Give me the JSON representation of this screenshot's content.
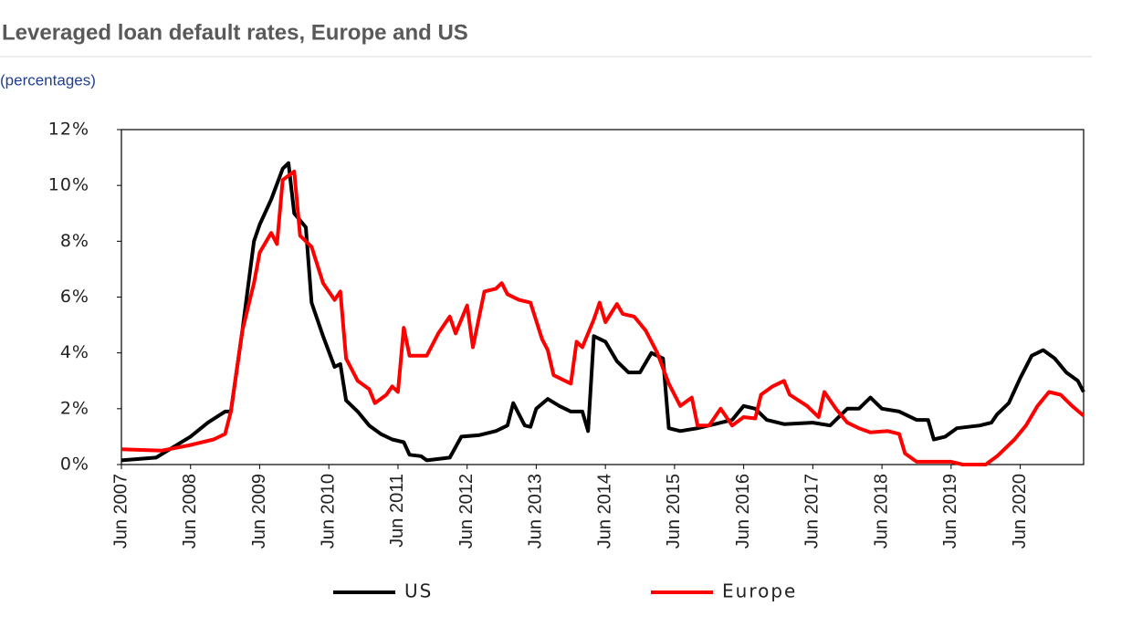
{
  "chart_data": {
    "type": "line",
    "title": "Leveraged loan default rates, Europe and US",
    "subtitle": "(percentages)",
    "xlim": [
      "2007-06",
      "2021-05"
    ],
    "xticks": [
      {
        "value": "2007-06",
        "label": "Jun 2007"
      },
      {
        "value": "2008-06",
        "label": "Jun 2008"
      },
      {
        "value": "2009-06",
        "label": "Jun 2009"
      },
      {
        "value": "2010-06",
        "label": "Jun 2010"
      },
      {
        "value": "2011-06",
        "label": "Jun 2011"
      },
      {
        "value": "2012-06",
        "label": "Jun 2012"
      },
      {
        "value": "2013-06",
        "label": "Jun 2013"
      },
      {
        "value": "2014-06",
        "label": "Jun 2014"
      },
      {
        "value": "2015-06",
        "label": "Jun 2015"
      },
      {
        "value": "2016-06",
        "label": "Jun 2016"
      },
      {
        "value": "2017-06",
        "label": "Jun 2017"
      },
      {
        "value": "2018-06",
        "label": "Jun 2018"
      },
      {
        "value": "2019-06",
        "label": "Jun 2019"
      },
      {
        "value": "2020-06",
        "label": "Jun 2020"
      }
    ],
    "ylim": [
      0,
      12
    ],
    "yticks": [
      {
        "value": 0,
        "label": "0%"
      },
      {
        "value": 2,
        "label": "2%"
      },
      {
        "value": 4,
        "label": "4%"
      },
      {
        "value": 6,
        "label": "6%"
      },
      {
        "value": 8,
        "label": "8%"
      },
      {
        "value": 10,
        "label": "10%"
      },
      {
        "value": 12,
        "label": "12%"
      }
    ],
    "legend": "bottom",
    "series": [
      {
        "name": "US",
        "color": "#000000",
        "x": [
          "2007-06",
          "2007-12",
          "2008-06",
          "2008-09",
          "2008-12",
          "2009-01",
          "2009-03",
          "2009-05",
          "2009-06",
          "2009-08",
          "2009-10",
          "2009-11",
          "2009-12",
          "2010-02",
          "2010-03",
          "2010-05",
          "2010-07",
          "2010-08",
          "2010-09",
          "2010-11",
          "2011-01",
          "2011-03",
          "2011-05",
          "2011-07",
          "2011-08",
          "2011-10",
          "2011-11",
          "2012-01",
          "2012-03",
          "2012-05",
          "2012-08",
          "2012-11",
          "2013-01",
          "2013-02",
          "2013-04",
          "2013-05",
          "2013-06",
          "2013-08",
          "2013-10",
          "2013-12",
          "2014-02",
          "2014-03",
          "2014-04",
          "2014-06",
          "2014-08",
          "2014-10",
          "2014-12",
          "2015-02",
          "2015-04",
          "2015-05",
          "2015-07",
          "2015-10",
          "2016-01",
          "2016-04",
          "2016-06",
          "2016-08",
          "2016-10",
          "2017-01",
          "2017-06",
          "2017-09",
          "2017-12",
          "2018-02",
          "2018-04",
          "2018-06",
          "2018-09",
          "2018-12",
          "2019-02",
          "2019-03",
          "2019-05",
          "2019-07",
          "2019-11",
          "2020-01",
          "2020-02",
          "2020-04",
          "2020-06",
          "2020-08",
          "2020-10",
          "2020-12",
          "2021-02",
          "2021-04",
          "2021-05"
        ],
        "values": [
          0.15,
          0.25,
          1.0,
          1.5,
          1.9,
          1.9,
          4.8,
          8.0,
          8.6,
          9.5,
          10.6,
          10.8,
          9.0,
          8.5,
          5.8,
          4.6,
          3.5,
          3.6,
          2.3,
          1.9,
          1.4,
          1.1,
          0.9,
          0.8,
          0.35,
          0.3,
          0.15,
          0.2,
          0.25,
          1.0,
          1.05,
          1.2,
          1.4,
          2.2,
          1.4,
          1.35,
          2.0,
          2.35,
          2.1,
          1.9,
          1.9,
          1.2,
          4.6,
          4.4,
          3.7,
          3.3,
          3.3,
          4.0,
          3.8,
          1.3,
          1.2,
          1.3,
          1.45,
          1.6,
          2.1,
          2.0,
          1.6,
          1.45,
          1.5,
          1.4,
          2.0,
          2.0,
          2.4,
          2.0,
          1.9,
          1.6,
          1.6,
          0.9,
          1.0,
          1.3,
          1.4,
          1.5,
          1.8,
          2.2,
          3.1,
          3.9,
          4.1,
          3.8,
          3.3,
          3.0,
          2.6
        ]
      },
      {
        "name": "Europe",
        "color": "#ff0000",
        "x": [
          "2007-06",
          "2008-01",
          "2008-06",
          "2008-10",
          "2008-12",
          "2009-01",
          "2009-03",
          "2009-05",
          "2009-06",
          "2009-08",
          "2009-09",
          "2009-10",
          "2009-12",
          "2010-01",
          "2010-03",
          "2010-05",
          "2010-07",
          "2010-08",
          "2010-09",
          "2010-11",
          "2011-01",
          "2011-02",
          "2011-04",
          "2011-05",
          "2011-06",
          "2011-07",
          "2011-08",
          "2011-11",
          "2012-01",
          "2012-03",
          "2012-04",
          "2012-06",
          "2012-07",
          "2012-09",
          "2012-11",
          "2012-12",
          "2013-01",
          "2013-03",
          "2013-05",
          "2013-07",
          "2013-08",
          "2013-09",
          "2013-11",
          "2013-12",
          "2014-01",
          "2014-02",
          "2014-04",
          "2014-05",
          "2014-06",
          "2014-08",
          "2014-09",
          "2014-11",
          "2015-01",
          "2015-03",
          "2015-05",
          "2015-07",
          "2015-09",
          "2015-10",
          "2015-12",
          "2016-02",
          "2016-04",
          "2016-06",
          "2016-08",
          "2016-09",
          "2016-11",
          "2017-01",
          "2017-02",
          "2017-05",
          "2017-07",
          "2017-08",
          "2017-10",
          "2017-12",
          "2018-02",
          "2018-04",
          "2018-07",
          "2018-09",
          "2018-10",
          "2018-12",
          "2019-06",
          "2019-08",
          "2019-12",
          "2020-02",
          "2020-05",
          "2020-07",
          "2020-09",
          "2020-11",
          "2021-01",
          "2021-03",
          "2021-05"
        ],
        "values": [
          0.55,
          0.5,
          0.7,
          0.9,
          1.1,
          1.9,
          4.8,
          6.5,
          7.6,
          8.3,
          7.9,
          10.2,
          10.5,
          8.2,
          7.8,
          6.5,
          5.9,
          6.2,
          3.8,
          3.0,
          2.7,
          2.2,
          2.5,
          2.8,
          2.6,
          4.9,
          3.9,
          3.9,
          4.7,
          5.3,
          4.7,
          5.7,
          4.2,
          6.2,
          6.3,
          6.5,
          6.1,
          5.9,
          5.8,
          4.5,
          4.1,
          3.2,
          3.0,
          2.9,
          4.4,
          4.2,
          5.2,
          5.8,
          5.1,
          5.75,
          5.4,
          5.3,
          4.8,
          4.0,
          2.9,
          2.1,
          2.4,
          1.4,
          1.4,
          2.0,
          1.4,
          1.7,
          1.65,
          2.5,
          2.8,
          3.0,
          2.5,
          2.1,
          1.7,
          2.6,
          2.0,
          1.5,
          1.3,
          1.15,
          1.2,
          1.1,
          0.4,
          0.1,
          0.1,
          0.0,
          0.0,
          0.3,
          0.9,
          1.4,
          2.1,
          2.6,
          2.5,
          2.1,
          1.75
        ]
      }
    ]
  }
}
